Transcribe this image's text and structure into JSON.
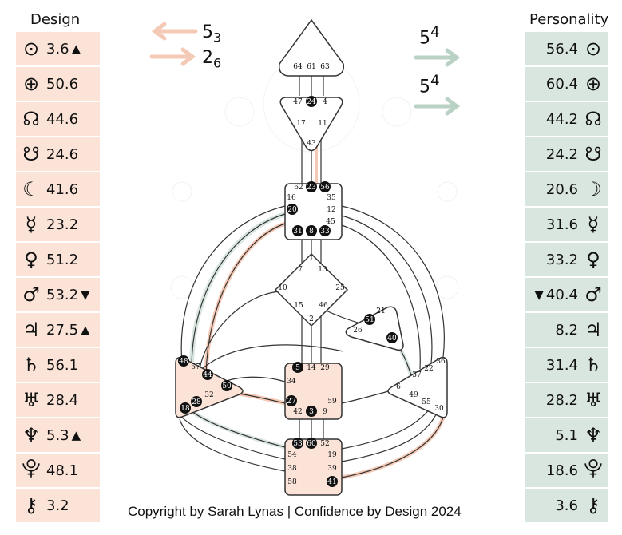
{
  "design": {
    "title": "Design",
    "rows": [
      {
        "icon": "sun-icon",
        "symbol": "⊙",
        "value": "3.6",
        "mark": "▲"
      },
      {
        "icon": "earth-icon",
        "symbol": "⊕",
        "value": "50.6",
        "mark": ""
      },
      {
        "icon": "north-node-icon",
        "symbol": "☊",
        "value": "44.6",
        "mark": ""
      },
      {
        "icon": "south-node-icon",
        "symbol": "☋",
        "value": "24.6",
        "mark": ""
      },
      {
        "icon": "moon-icon",
        "symbol": "☾",
        "value": "41.6",
        "mark": ""
      },
      {
        "icon": "mercury-icon",
        "symbol": "☿",
        "value": "23.2",
        "mark": ""
      },
      {
        "icon": "venus-icon",
        "symbol": "♀",
        "value": "51.2",
        "mark": ""
      },
      {
        "icon": "mars-icon",
        "symbol": "♂",
        "value": "53.2",
        "mark": "▼"
      },
      {
        "icon": "jupiter-icon",
        "symbol": "♃",
        "value": "27.5",
        "mark": "▲"
      },
      {
        "icon": "saturn-icon",
        "symbol": "♄",
        "value": "56.1",
        "mark": ""
      },
      {
        "icon": "uranus-icon",
        "symbol": "♅",
        "value": "28.4",
        "mark": ""
      },
      {
        "icon": "neptune-icon",
        "symbol": "♆",
        "value": "5.3",
        "mark": "▲"
      },
      {
        "icon": "pluto-icon",
        "symbol": "⯓",
        "value": "48.1",
        "mark": ""
      },
      {
        "icon": "chiron-icon",
        "symbol": "⚷",
        "value": "3.2",
        "mark": ""
      }
    ]
  },
  "personality": {
    "title": "Personality",
    "rows": [
      {
        "icon": "sun-icon",
        "symbol": "⊙",
        "value": "56.4",
        "mark": ""
      },
      {
        "icon": "earth-icon",
        "symbol": "⊕",
        "value": "60.4",
        "mark": ""
      },
      {
        "icon": "north-node-icon",
        "symbol": "☊",
        "value": "44.2",
        "mark": ""
      },
      {
        "icon": "south-node-icon",
        "symbol": "☋",
        "value": "24.2",
        "mark": ""
      },
      {
        "icon": "moon-icon",
        "symbol": "☽",
        "value": "20.6",
        "mark": ""
      },
      {
        "icon": "mercury-icon",
        "symbol": "☿",
        "value": "31.6",
        "mark": ""
      },
      {
        "icon": "venus-icon",
        "symbol": "♀",
        "value": "33.2",
        "mark": ""
      },
      {
        "icon": "mars-icon",
        "symbol": "♂",
        "value": "40.4",
        "mark": "▼"
      },
      {
        "icon": "jupiter-icon",
        "symbol": "♃",
        "value": "8.2",
        "mark": ""
      },
      {
        "icon": "saturn-icon",
        "symbol": "♄",
        "value": "31.4",
        "mark": ""
      },
      {
        "icon": "uranus-icon",
        "symbol": "♅",
        "value": "28.2",
        "mark": ""
      },
      {
        "icon": "neptune-icon",
        "symbol": "♆",
        "value": "5.1",
        "mark": ""
      },
      {
        "icon": "pluto-icon",
        "symbol": "⯓",
        "value": "18.6",
        "mark": ""
      },
      {
        "icon": "chiron-icon",
        "symbol": "⚷",
        "value": "3.6",
        "mark": ""
      }
    ]
  },
  "arrows": {
    "design_top": {
      "num": "5",
      "sub": "3"
    },
    "design_bottom": {
      "num": "2",
      "sub": "6"
    },
    "pers_top": {
      "num": "5",
      "sup": "4"
    },
    "pers_bottom": {
      "num": "5",
      "sup": "4"
    }
  },
  "centers": {
    "head": [
      "64",
      "61",
      "63"
    ],
    "ajna": [
      "47",
      "24",
      "4",
      "17",
      "11",
      "43"
    ],
    "throat": [
      "62",
      "23",
      "56",
      "16",
      "35",
      "20",
      "12",
      "45",
      "31",
      "8",
      "33"
    ],
    "g": [
      "1",
      "7",
      "13",
      "10",
      "25",
      "15",
      "46",
      "2"
    ],
    "heart": [
      "21",
      "51",
      "26",
      "40"
    ],
    "spleen": [
      "48",
      "57",
      "44",
      "50",
      "32",
      "18",
      "28"
    ],
    "sacral": [
      "5",
      "14",
      "29",
      "34",
      "27",
      "59",
      "42",
      "3",
      "9"
    ],
    "solar": [
      "36",
      "22",
      "37",
      "6",
      "49",
      "55",
      "30"
    ],
    "root": [
      "53",
      "60",
      "52",
      "54",
      "19",
      "38",
      "39",
      "58",
      "41"
    ]
  },
  "colors": {
    "design": "#fbe3d8",
    "personality": "#d9e6df",
    "design_arrow": "#f4c9b5",
    "pers_arrow": "#b9d2c4"
  },
  "copyright": "Copyright by Sarah Lynas | Confidence by Design 2024"
}
